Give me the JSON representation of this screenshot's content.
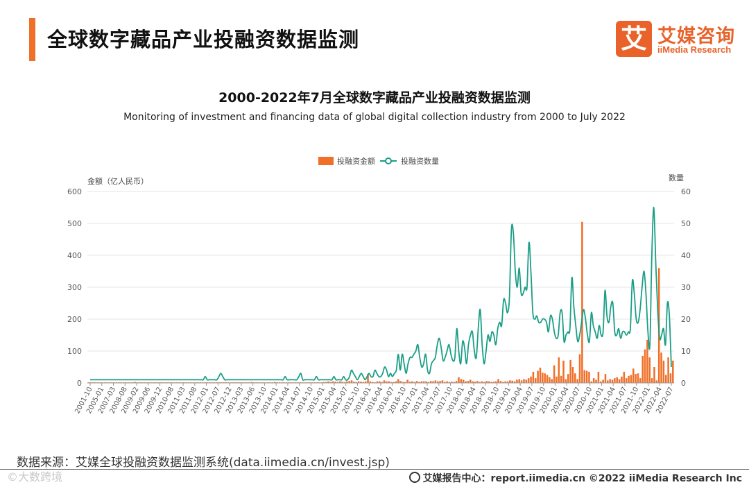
{
  "header": {
    "title": "全球数字藏品产业投融资数据监测",
    "logo_box": "艾",
    "logo_cn": "艾媒咨询",
    "logo_en": "iiMedia Research"
  },
  "chart_data": {
    "type": "bar+line",
    "title": "2000-2022年7月全球数字藏品产业投融资数据监测",
    "subtitle": "Monitoring of investment and financing data of global digital collection industry from 2000 to July 2022",
    "yleft_label": "金额（亿人民币）",
    "yright_label": "数量",
    "yleft_lim": [
      0,
      600
    ],
    "yright_lim": [
      0,
      60
    ],
    "yleft_ticks": [
      "0",
      "100",
      "200",
      "300",
      "400",
      "500",
      "600"
    ],
    "yright_ticks": [
      "0",
      "10",
      "20",
      "30",
      "40",
      "50",
      "60"
    ],
    "legend": [
      {
        "name": "投融资金额",
        "color": "#f0702a",
        "kind": "bar"
      },
      {
        "name": "投融资数量",
        "color": "#1a9e86",
        "kind": "line"
      }
    ],
    "legend_position": "top-center",
    "x_tick_labels": [
      "2001-10",
      "2005-01",
      "2007-03",
      "2008-08",
      "2009-02",
      "2009-06",
      "2009-12",
      "2010-08",
      "2011-03",
      "2011-08",
      "2012-01",
      "2012-07",
      "2012-12",
      "2013-03",
      "2013-06",
      "2013-10",
      "2014-01",
      "2014-04",
      "2014-07",
      "2014-10",
      "2015-01",
      "2015-04",
      "2015-07",
      "2015-10",
      "2016-01",
      "2016-04",
      "2016-07",
      "2016-10",
      "2017-01",
      "2017-04",
      "2017-07",
      "2017-10",
      "2018-01",
      "2018-04",
      "2018-07",
      "2018-10",
      "2019-01",
      "2019-04",
      "2019-07",
      "2019-10",
      "2020-01",
      "2020-04",
      "2020-07",
      "2020-10",
      "2021-01",
      "2021-04",
      "2021-07",
      "2021-10",
      "2022-01",
      "2022-04",
      "2022-07"
    ],
    "series": [
      {
        "name": "投融资金额",
        "kind": "bar",
        "values": [
          2,
          2,
          2,
          2,
          2,
          2,
          2,
          2,
          2,
          2,
          2,
          2,
          2,
          2,
          2,
          2,
          2,
          2,
          2,
          2,
          3,
          2,
          2,
          2,
          2,
          2,
          2,
          2,
          2,
          2,
          2,
          2,
          2,
          2,
          2,
          2,
          2,
          2,
          2,
          2,
          2,
          2,
          2,
          2,
          2,
          2,
          2,
          2,
          2,
          2,
          2,
          2,
          2,
          2,
          2,
          2,
          2,
          2,
          2,
          2,
          2,
          2,
          2,
          2,
          2,
          2,
          2,
          2,
          2,
          2,
          3,
          2,
          2,
          2,
          2,
          2,
          2,
          2,
          2,
          2,
          3,
          2,
          2,
          2,
          2,
          2,
          2,
          2,
          2,
          2,
          2,
          2,
          2,
          2,
          2,
          2,
          2,
          2,
          2,
          2,
          2,
          3,
          3,
          5,
          3,
          5,
          4,
          3,
          5,
          4,
          3,
          5,
          6,
          8,
          4,
          3,
          5,
          4,
          3,
          5,
          28,
          5,
          3,
          2,
          5,
          5,
          3,
          8,
          5,
          5,
          3,
          3,
          5,
          12,
          6,
          3,
          3,
          10,
          4,
          5,
          3,
          6,
          3,
          5,
          5,
          5,
          3,
          6,
          5,
          8,
          5,
          6,
          8,
          3,
          5,
          3,
          4,
          3,
          6,
          18,
          12,
          10,
          5,
          6,
          10,
          5,
          4,
          6,
          3,
          5,
          3,
          6,
          5,
          3,
          4,
          5,
          12,
          6,
          3,
          5,
          5,
          8,
          7,
          5,
          10,
          12,
          8,
          12,
          10,
          15,
          20,
          35,
          15,
          38,
          48,
          32,
          30,
          25,
          18,
          12,
          55,
          20,
          80,
          22,
          70,
          12,
          28,
          72,
          50,
          30,
          12,
          90,
          505,
          40,
          38,
          35,
          5,
          15,
          10,
          35,
          5,
          10,
          28,
          8,
          12,
          10,
          15,
          18,
          12,
          20,
          35,
          15,
          22,
          25,
          45,
          28,
          30,
          15,
          85,
          105,
          135,
          80,
          15,
          50,
          8,
          360,
          95,
          70,
          25,
          80,
          30,
          70
        ],
        "color": "#f0702a"
      },
      {
        "name": "投融资数量",
        "kind": "line",
        "values": [
          1,
          1,
          1,
          1,
          1,
          1,
          1,
          1,
          1,
          1,
          1,
          1,
          1,
          1,
          1,
          1,
          1,
          1,
          1,
          1,
          1,
          1,
          1,
          1,
          1,
          1,
          1,
          1,
          1,
          1,
          1,
          1,
          1,
          1,
          1,
          1,
          1,
          1,
          1,
          1,
          1,
          1,
          1,
          1,
          1,
          1,
          1,
          1,
          1,
          1,
          1,
          1,
          1,
          1,
          1,
          1,
          1,
          1,
          1,
          2,
          1,
          1,
          1,
          1,
          1,
          1,
          2,
          3,
          2,
          1,
          1,
          1,
          1,
          1,
          1,
          1,
          1,
          1,
          1,
          1,
          1,
          1,
          1,
          1,
          1,
          1,
          1,
          1,
          1,
          1,
          1,
          1,
          1,
          1,
          1,
          1,
          1,
          1,
          1,
          1,
          2,
          1,
          1,
          1,
          1,
          1,
          1,
          2,
          3,
          1,
          1,
          1,
          1,
          1,
          1,
          1,
          2,
          1,
          1,
          1,
          1,
          1,
          1,
          1,
          1,
          2,
          1,
          1,
          1,
          1,
          2,
          1,
          1,
          2,
          4,
          3,
          2,
          1,
          2,
          3,
          2,
          1,
          2,
          3,
          2,
          2,
          4,
          3,
          2,
          2,
          3,
          5,
          4,
          2,
          3,
          2,
          3,
          4,
          9,
          4,
          9,
          6,
          3,
          6,
          8,
          8,
          9,
          10,
          12,
          8,
          5,
          6,
          9,
          4,
          3,
          6,
          7,
          8,
          12,
          14,
          11,
          7,
          8,
          10,
          12,
          9,
          7,
          8,
          17,
          10,
          6,
          13,
          11,
          6,
          12,
          15,
          16,
          10,
          8,
          17,
          23,
          12,
          6,
          10,
          15,
          13,
          16,
          15,
          12,
          17,
          19,
          18,
          26,
          25,
          22,
          27,
          48,
          47,
          35,
          30,
          36,
          28,
          28,
          30,
          30,
          44,
          35,
          22,
          20,
          21,
          19,
          19,
          20,
          20,
          19,
          16,
          21,
          20,
          16,
          14,
          15,
          22,
          22,
          13,
          15,
          16,
          17,
          33,
          24,
          18,
          13,
          15,
          19,
          23,
          20,
          15,
          13,
          22,
          18,
          16,
          14,
          18,
          15,
          16,
          29,
          21,
          19,
          24,
          25,
          16,
          15,
          17,
          14,
          16,
          16,
          15,
          16,
          17,
          32,
          28,
          20,
          19,
          23,
          30,
          35,
          28,
          16,
          12,
          40,
          55,
          38,
          23,
          14,
          15,
          17,
          12,
          25,
          21,
          5
        ]
      }
    ]
  },
  "source": "数据来源：艾媒全球投融资数据监测系统(data.iimedia.cn/invest.jsp)",
  "footer": {
    "text": "艾媒报告中心：report.iimedia.cn   ©2022  iiMedia Research  Inc",
    "watermark": "©大数跨境"
  }
}
